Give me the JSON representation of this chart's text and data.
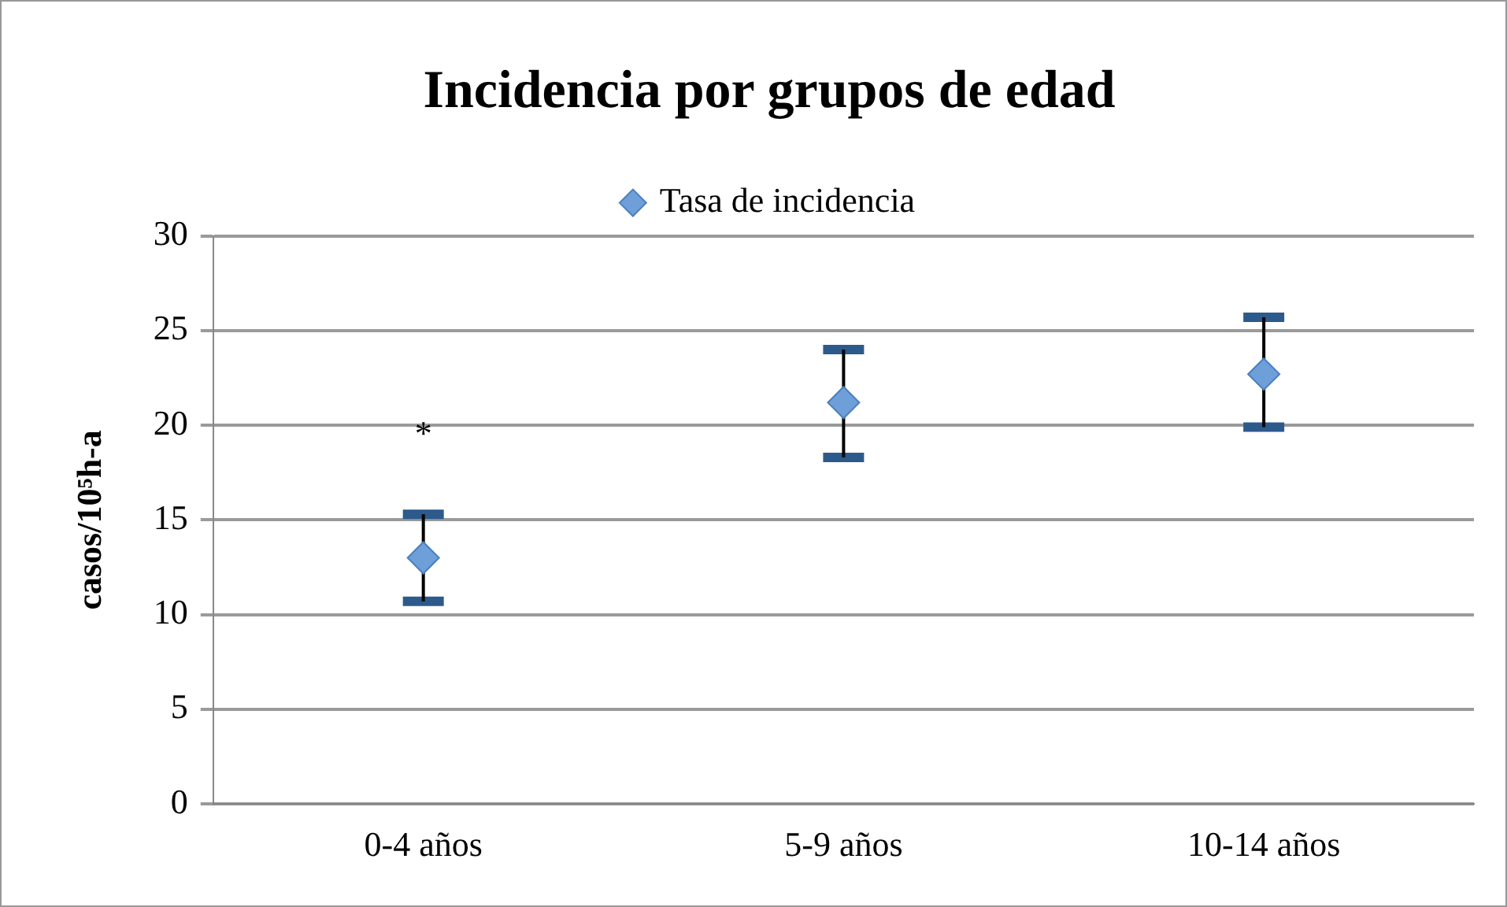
{
  "chart_data": {
    "type": "scatter",
    "title": "Incidencia por grupos de edad",
    "ylabel": "casos/10⁵h-a",
    "categories": [
      "0-4 años",
      "5-9 años",
      "10-14 años"
    ],
    "series": [
      {
        "name": "Tasa de incidencia",
        "color": "#6f9fd8",
        "values": [
          13.0,
          21.2,
          22.7
        ],
        "errors": [
          [
            10.7,
            15.3
          ],
          [
            18.3,
            24.0
          ],
          [
            19.9,
            25.7
          ]
        ]
      }
    ],
    "ylim": [
      0,
      30
    ],
    "yticks": [
      0,
      5,
      10,
      15,
      20,
      25,
      30
    ],
    "grid": "y",
    "legend": "top",
    "marker": "diamond",
    "annotations": [
      "*"
    ]
  }
}
